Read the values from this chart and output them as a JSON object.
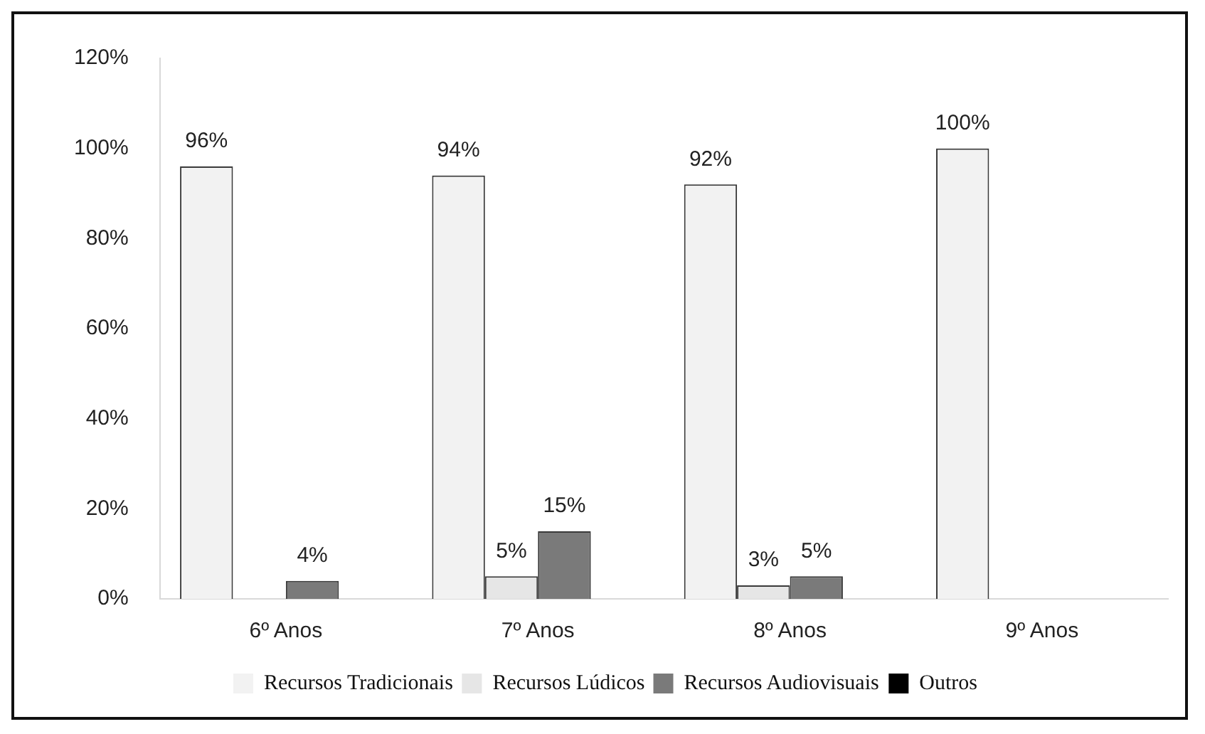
{
  "chart_data": {
    "type": "bar",
    "categories": [
      "6º Anos",
      "7º Anos",
      "8º Anos",
      "9º Anos"
    ],
    "series": [
      {
        "name": "Recursos Tradicionais",
        "color": "#f2f2f2",
        "values": [
          96,
          94,
          92,
          100
        ],
        "value_labels": [
          "96%",
          "94%",
          "92%",
          "100%"
        ]
      },
      {
        "name": "Recursos Lúdicos",
        "color": "#e6e6e6",
        "values": [
          null,
          5,
          3,
          null
        ],
        "value_labels": [
          null,
          "5%",
          "3%",
          null
        ]
      },
      {
        "name": "Recursos Audiovisuais",
        "color": "#7a7a7a",
        "values": [
          4,
          15,
          5,
          null
        ],
        "value_labels": [
          "4%",
          "15%",
          "5%",
          null
        ]
      },
      {
        "name": "Outros",
        "color": "#000000",
        "values": [
          null,
          null,
          null,
          null
        ],
        "value_labels": [
          null,
          null,
          null,
          null
        ]
      }
    ],
    "ylim": [
      0,
      120
    ],
    "yticks": [
      {
        "value": 0,
        "label": "0%"
      },
      {
        "value": 20,
        "label": "20%"
      },
      {
        "value": 40,
        "label": "40%"
      },
      {
        "value": 60,
        "label": "60%"
      },
      {
        "value": 80,
        "label": "80%"
      },
      {
        "value": 100,
        "label": "100%"
      },
      {
        "value": 120,
        "label": "120%"
      }
    ],
    "grid": false,
    "legend": "bottom"
  }
}
